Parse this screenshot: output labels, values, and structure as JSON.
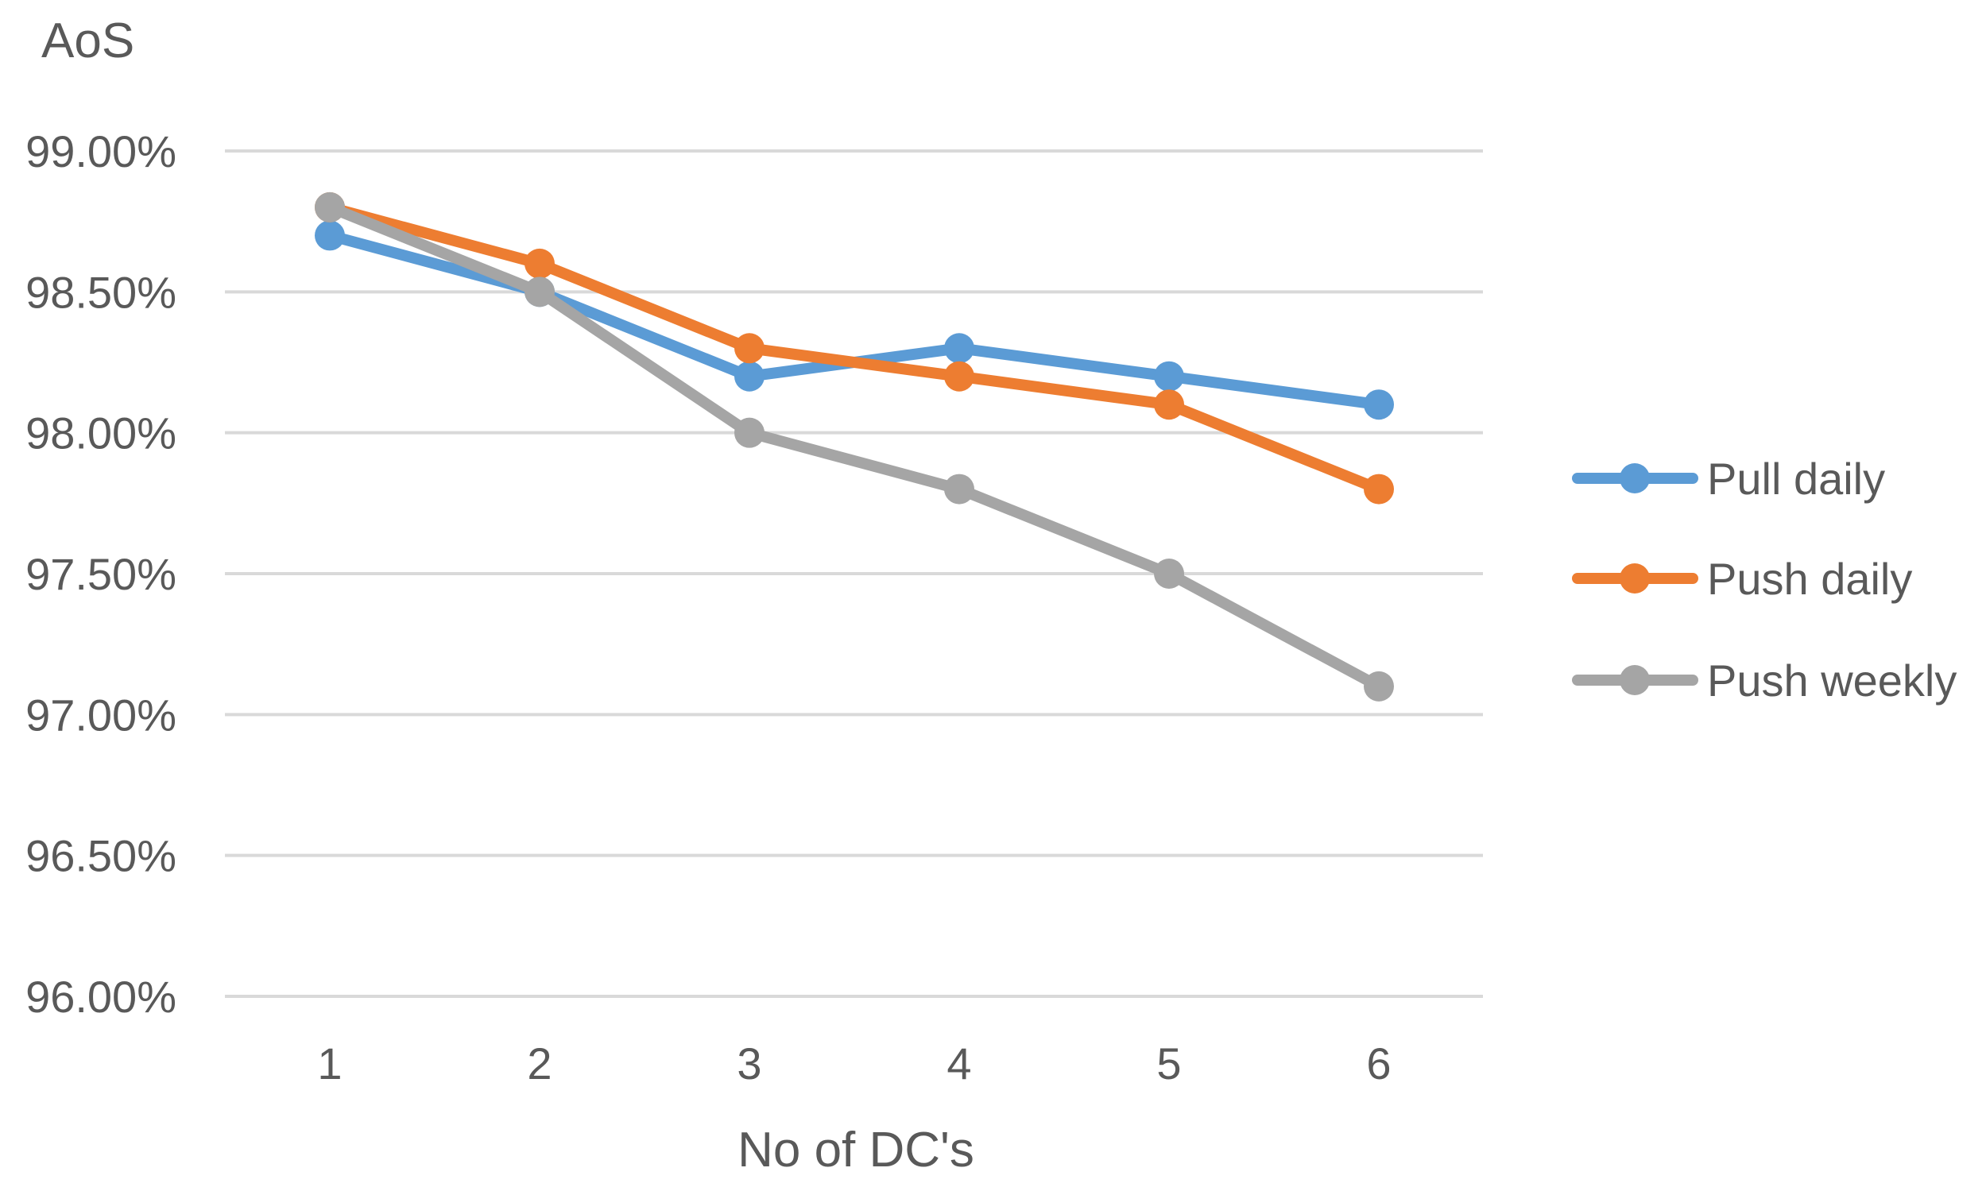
{
  "chart_data": {
    "type": "line",
    "title": "",
    "ylabel": "AoS",
    "xlabel": "No of DC's",
    "categories": [
      "1",
      "2",
      "3",
      "4",
      "5",
      "6"
    ],
    "ylim": [
      96.0,
      99.0
    ],
    "ytick_values": [
      96.0,
      96.5,
      97.0,
      97.5,
      98.0,
      98.5,
      99.0
    ],
    "ytick_labels": [
      "96.00%",
      "96.50%",
      "97.00%",
      "97.50%",
      "98.00%",
      "98.50%",
      "99.00%"
    ],
    "grid": true,
    "legend_position": "right",
    "series": [
      {
        "name": "Pull daily",
        "color": "#5B9BD5",
        "values": [
          98.7,
          98.5,
          98.2,
          98.3,
          98.2,
          98.1
        ]
      },
      {
        "name": "Push daily",
        "color": "#ED7D31",
        "values": [
          98.8,
          98.6,
          98.3,
          98.2,
          98.1,
          97.8
        ]
      },
      {
        "name": "Push weekly",
        "color": "#A5A5A5",
        "values": [
          98.8,
          98.5,
          98.0,
          97.8,
          97.5,
          97.1
        ]
      }
    ]
  }
}
